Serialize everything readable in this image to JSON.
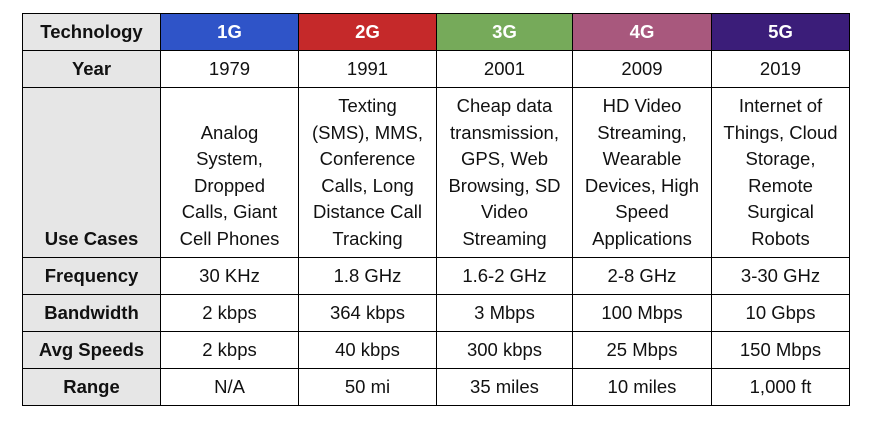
{
  "table": {
    "header": {
      "label": "Technology",
      "generations": [
        "1G",
        "2G",
        "3G",
        "4G",
        "5G"
      ]
    },
    "rows": {
      "year": {
        "label": "Year",
        "values": [
          "1979",
          "1991",
          "2001",
          "2009",
          "2019"
        ]
      },
      "use_cases": {
        "label": "Use Cases",
        "values": [
          "Analog\nSystem,\nDropped\nCalls, Giant\nCell Phones",
          "Texting\n(SMS), MMS,\nConference\nCalls, Long\nDistance Call\nTracking",
          "Cheap data\ntransmission,\nGPS, Web\nBrowsing, SD\nVideo\nStreaming",
          "HD Video\nStreaming,\nWearable\nDevices, High\nSpeed\nApplications",
          "Internet of\nThings, Cloud\nStorage,\nRemote\nSurgical\nRobots"
        ]
      },
      "frequency": {
        "label": "Frequency",
        "values": [
          "30 KHz",
          "1.8 GHz",
          "1.6-2 GHz",
          "2-8 GHz",
          "3-30 GHz"
        ]
      },
      "bandwidth": {
        "label": "Bandwidth",
        "values": [
          "2 kbps",
          "364 kbps",
          "3 Mbps",
          "100 Mbps",
          "10 Gbps"
        ]
      },
      "avg_speeds": {
        "label": "Avg Speeds",
        "values": [
          "2 kbps",
          "40 kbps",
          "300 kbps",
          "25 Mbps",
          "150 Mbps"
        ]
      },
      "range": {
        "label": "Range",
        "values": [
          "N/A",
          "50 mi",
          "35 miles",
          "10 miles",
          "1,000 ft"
        ]
      }
    },
    "colors": {
      "1G": "#2f54c8",
      "2G": "#c5292a",
      "3G": "#76aa5a",
      "4G": "#a8587d",
      "5G": "#3b1d79",
      "row_header_bg": "#e6e6e6"
    }
  }
}
